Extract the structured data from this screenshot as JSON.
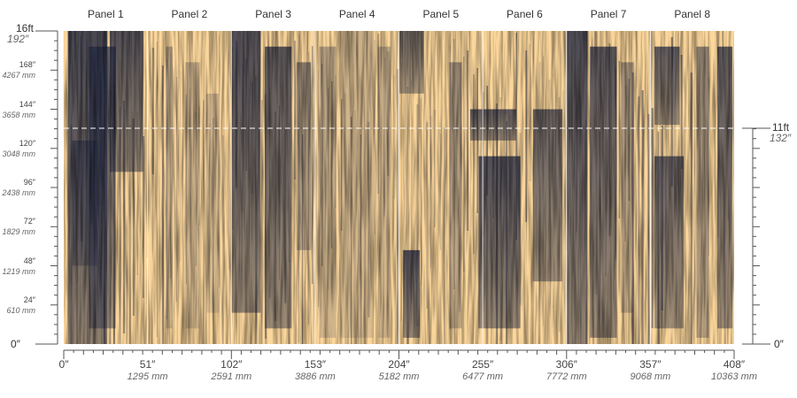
{
  "panels": [
    "Panel 1",
    "Panel 2",
    "Panel 3",
    "Panel 4",
    "Panel 5",
    "Panel 6",
    "Panel 7",
    "Panel 8"
  ],
  "x_axis": {
    "inches": [
      "0″",
      "51″",
      "102″",
      "153″",
      "204″",
      "255″",
      "306″",
      "357″",
      "408″"
    ],
    "mm": [
      "",
      "1295 mm",
      "2591 mm",
      "3886 mm",
      "5182 mm",
      "6477 mm",
      "7772 mm",
      "9068 mm",
      "10363 mm"
    ]
  },
  "left_axis": {
    "top_ft": "16ft",
    "top_in": "192″",
    "zero": "0″",
    "ticks": [
      {
        "in": "168″",
        "mm": "4267 mm"
      },
      {
        "in": "144″",
        "mm": "3658 mm"
      },
      {
        "in": "120″",
        "mm": "3048 mm"
      },
      {
        "in": "96″",
        "mm": "2438 mm"
      },
      {
        "in": "72″",
        "mm": "1829 mm"
      },
      {
        "in": "48″",
        "mm": "1219 mm"
      },
      {
        "in": "24″",
        "mm": "610 mm"
      }
    ]
  },
  "right_axis": {
    "marker_ft": "11ft",
    "marker_in": "132″",
    "zero": "0″"
  },
  "colors": {
    "canvas": "#fcd79c",
    "paint": "#1e2540",
    "axis": "#555555",
    "divider": "#ffffff"
  }
}
